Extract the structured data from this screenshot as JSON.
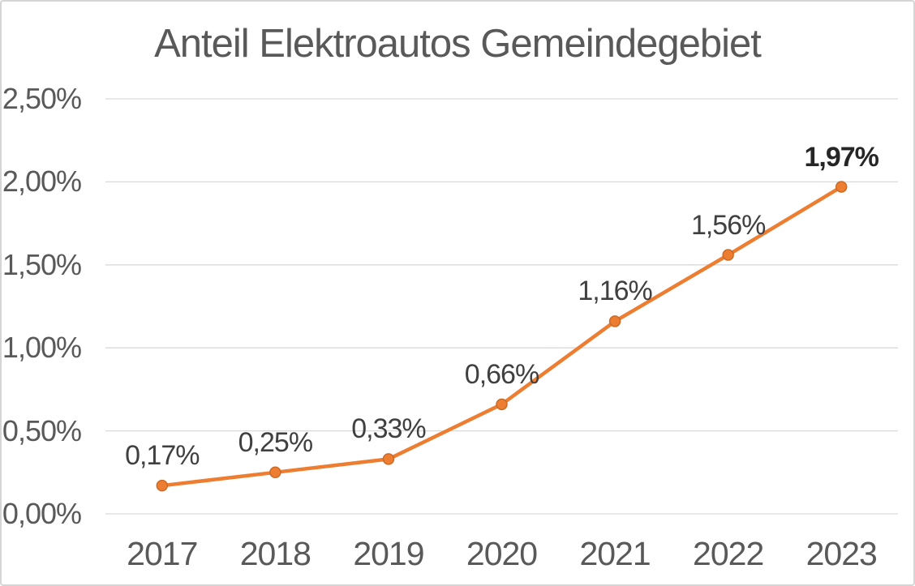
{
  "window": {
    "background": "#ffffff",
    "border_color": "#d5d5d5"
  },
  "chart_data": {
    "type": "line",
    "title": "Anteil Elektroautos Gemeindegebiet",
    "categories": [
      "2017",
      "2018",
      "2019",
      "2020",
      "2021",
      "2022",
      "2023"
    ],
    "series": [
      {
        "name": "Anteil Elektroautos",
        "values": [
          0.17,
          0.25,
          0.33,
          0.66,
          1.16,
          1.56,
          1.97
        ],
        "point_labels": [
          "0,17%",
          "0,25%",
          "0,33%",
          "0,66%",
          "1,16%",
          "1,56%",
          "1,97%"
        ],
        "emphasized_label_index": 6
      }
    ],
    "xlabel": "",
    "ylabel": "",
    "ylim": [
      0,
      2.5
    ],
    "ytick_step": 0.5,
    "ytick_labels": [
      "0,00%",
      "0,50%",
      "1,00%",
      "1,50%",
      "2,00%",
      "2,50%"
    ],
    "grid": "horizontal",
    "legend_position": "none",
    "style": {
      "line_color": "#ED7D31",
      "marker_fill": "#ED7D31",
      "marker_stroke": "#CB6A27",
      "gridline_color": "#D9D9D9",
      "title_color": "#595959",
      "axis_label_color": "#595959",
      "data_label_color": "#404040",
      "emphasis_label_color": "#262626"
    }
  }
}
